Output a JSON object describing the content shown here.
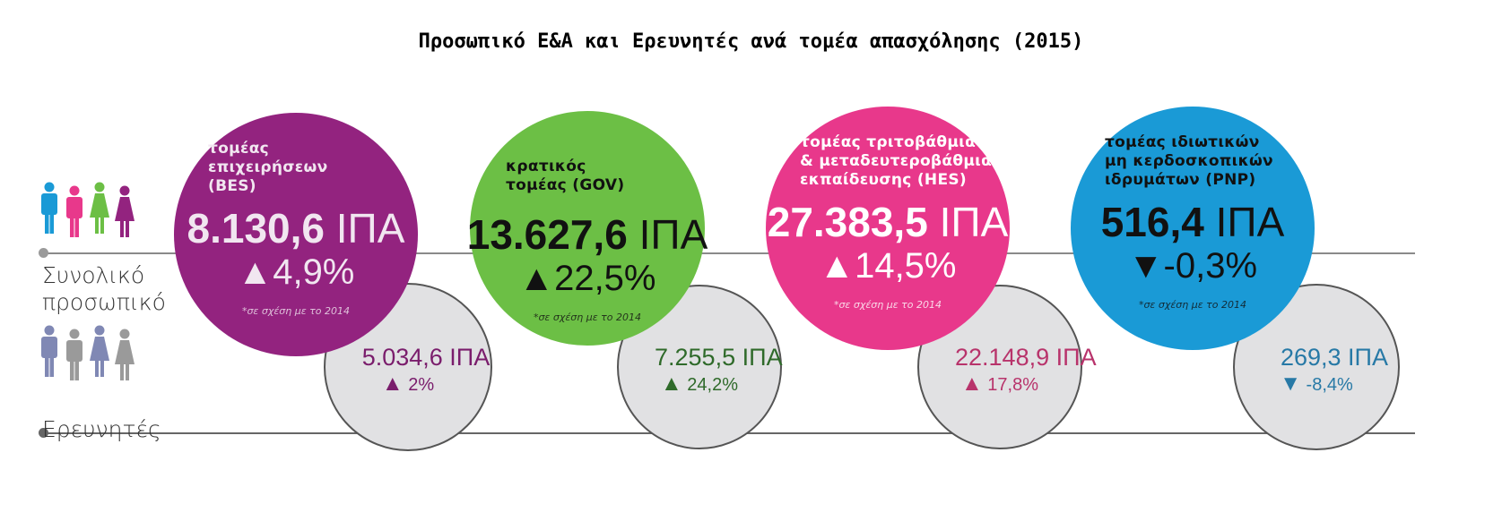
{
  "title": "Προσωπικό Ε&Α και Ερευνητές ανά τομέα απασχόλησης (2015)",
  "rows": {
    "total_label": [
      "Συνολικό",
      "προσωπικό"
    ],
    "researchers_label": "Ερευνητές"
  },
  "icons": {
    "total": [
      "person-male-icon",
      "person-male-icon",
      "person-female-icon",
      "person-female-icon"
    ],
    "total_colors": [
      "#1a9ad6",
      "#e8388b",
      "#6cbf45",
      "#93237f"
    ],
    "researchers": [
      "person-male-icon",
      "person-male-icon",
      "person-female-icon",
      "person-female-icon"
    ],
    "researchers_colors": [
      "#8088b4",
      "#9a9a9a",
      "#8088b4",
      "#9a9a9a"
    ]
  },
  "sectors": [
    {
      "name_lines": [
        "τομέας",
        "επιχειρήσεων",
        "(BES)"
      ],
      "total_value": "8.130,6",
      "unit": "ΙΠΑ",
      "total_change": "4,9%",
      "total_direction": "up",
      "note": "*σε σχέση με το 2014",
      "researchers_value": "5.034,6",
      "researchers_change": "2%",
      "researchers_direction": "up",
      "color": "#93237f",
      "text_color": "#f1e6f0",
      "small_text_color": "#7a1d6c"
    },
    {
      "name_lines": [
        "κρατικός",
        "τομέας (GOV)"
      ],
      "total_value": "13.627,6",
      "unit": "ΙΠΑ",
      "total_change": "22,5%",
      "total_direction": "up",
      "note": "*σε σχέση με το 2014",
      "researchers_value": "7.255,5",
      "researchers_change": "24,2%",
      "researchers_direction": "up",
      "color": "#6cbf45",
      "text_color": "#111111",
      "small_text_color": "#2f6a2a"
    },
    {
      "name_lines": [
        "τομέας τριτοβάθμιας",
        "& μεταδευτεροβάθμιας",
        "εκπαίδευσης (HES)"
      ],
      "total_value": "27.383,5",
      "unit": "ΙΠΑ",
      "total_change": "14,5%",
      "total_direction": "up",
      "note": "*σε σχέση με το 2014",
      "researchers_value": "22.148,9",
      "researchers_change": "17,8%",
      "researchers_direction": "up",
      "color": "#e8388b",
      "text_color": "#ffffff",
      "small_text_color": "#b8336b"
    },
    {
      "name_lines": [
        "τομέας ιδιωτικών",
        "μη κερδοσκοπικών",
        "ιδρυμάτων (PNP)"
      ],
      "total_value": "516,4",
      "unit": "ΙΠΑ",
      "total_change": "-0,3%",
      "total_direction": "down",
      "note": "*σε σχέση με το 2014",
      "researchers_value": "269,3",
      "researchers_change": "-8,4%",
      "researchers_direction": "down",
      "color": "#1a9ad6",
      "text_color": "#111111",
      "small_text_color": "#2779a6"
    }
  ]
}
